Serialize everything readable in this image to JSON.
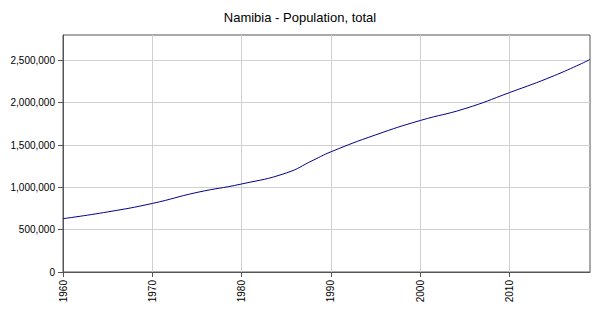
{
  "chart_data": {
    "type": "line",
    "title": "Namibia - Population, total",
    "x": [
      1960,
      1965,
      1970,
      1975,
      1980,
      1985,
      1988,
      1990,
      1995,
      2000,
      2005,
      2010,
      2015,
      2019
    ],
    "values": [
      630000,
      710000,
      810000,
      940000,
      1040000,
      1170000,
      1320000,
      1420000,
      1620000,
      1790000,
      1930000,
      2120000,
      2320000,
      2510000
    ],
    "color": "#00008b",
    "xlim": [
      1960,
      2019
    ],
    "xticks": [
      1960,
      1970,
      1980,
      1990,
      2000,
      2010
    ],
    "ylim": [
      0,
      2800000
    ],
    "yticks": [
      0,
      {
        "value": 500000,
        "label": "500,000"
      },
      {
        "value": 1000000,
        "label": "1,000,000"
      },
      {
        "value": 1500000,
        "label": "1,500,000"
      },
      {
        "value": 2000000,
        "label": "2,000,000"
      },
      {
        "value": 2500000,
        "label": "2,500,000"
      }
    ],
    "grid": true
  }
}
